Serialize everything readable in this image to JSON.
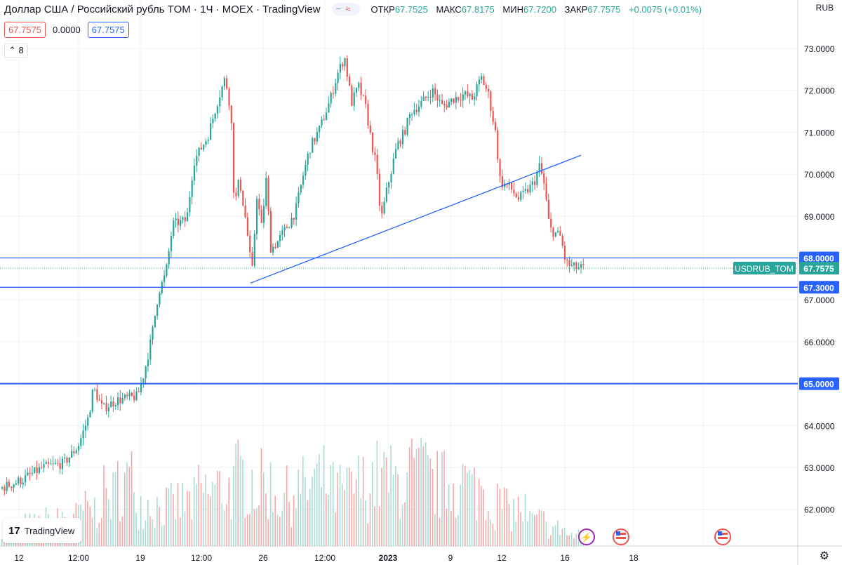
{
  "header": {
    "symbol": "Доллар США / Российский рубль TOM · 1Ч · MOEX · TradingView",
    "open_label": "ОТКР",
    "open": "67.7525",
    "high_label": "МАКС",
    "high": "67.8175",
    "low_label": "МИН",
    "low": "67.7200",
    "close_label": "ЗАКР",
    "close": "67.7575",
    "change": "+0.0075 (+0.01%)",
    "sell_price": "67.7575",
    "spread": "0.0000",
    "buy_price": "67.7575",
    "indicator_count": "8",
    "currency": "RUB"
  },
  "branding": {
    "logo_text": "TradingView"
  },
  "colors": {
    "up": "#26a69a",
    "down": "#ef5350",
    "line": "#2962ff",
    "grid": "#eef1f6",
    "vol_up": "#a8dcd4",
    "vol_down": "#f5a9a7"
  },
  "chart_data": {
    "type": "candlestick",
    "title": "Доллар США / Российский рубль TOM",
    "ylim": [
      61.6,
      73.0
    ],
    "y_ticks": [
      "73.0000",
      "72.0000",
      "71.0000",
      "70.0000",
      "69.0000",
      "68.0000",
      "67.0000",
      "66.0000",
      "65.0000",
      "64.0000",
      "63.0000",
      "62.0000"
    ],
    "x_ticks": [
      "12",
      "12:00",
      "19",
      "12:00",
      "26",
      "12:00",
      "2023",
      "9",
      "12",
      "16",
      "18"
    ],
    "price_path": [
      [
        0,
        62.5
      ],
      [
        30,
        62.7
      ],
      [
        60,
        63.0
      ],
      [
        90,
        63.1
      ],
      [
        110,
        63.5
      ],
      [
        125,
        64.2
      ],
      [
        132,
        64.9
      ],
      [
        145,
        64.4
      ],
      [
        165,
        64.6
      ],
      [
        195,
        64.7
      ],
      [
        205,
        65.3
      ],
      [
        215,
        66.1
      ],
      [
        225,
        67.2
      ],
      [
        235,
        67.6
      ],
      [
        245,
        68.8
      ],
      [
        265,
        68.9
      ],
      [
        275,
        70.3
      ],
      [
        295,
        70.9
      ],
      [
        310,
        71.8
      ],
      [
        320,
        72.3
      ],
      [
        328,
        71.5
      ],
      [
        333,
        69.2
      ],
      [
        340,
        69.9
      ],
      [
        350,
        68.8
      ],
      [
        358,
        67.6
      ],
      [
        365,
        69.5
      ],
      [
        372,
        68.7
      ],
      [
        378,
        69.9
      ],
      [
        385,
        68.2
      ],
      [
        395,
        68.4
      ],
      [
        410,
        68.8
      ],
      [
        420,
        69.1
      ],
      [
        430,
        69.9
      ],
      [
        440,
        70.6
      ],
      [
        455,
        71.1
      ],
      [
        470,
        71.8
      ],
      [
        480,
        72.4
      ],
      [
        490,
        72.8
      ],
      [
        500,
        71.7
      ],
      [
        510,
        72.1
      ],
      [
        520,
        71.6
      ],
      [
        528,
        70.8
      ],
      [
        535,
        70.2
      ],
      [
        542,
        68.9
      ],
      [
        550,
        69.6
      ],
      [
        558,
        70.2
      ],
      [
        565,
        70.7
      ],
      [
        575,
        71.0
      ],
      [
        585,
        71.5
      ],
      [
        600,
        71.7
      ],
      [
        615,
        72.0
      ],
      [
        630,
        71.6
      ],
      [
        645,
        71.8
      ],
      [
        660,
        71.9
      ],
      [
        672,
        71.8
      ],
      [
        685,
        72.3
      ],
      [
        695,
        71.9
      ],
      [
        705,
        71.0
      ],
      [
        712,
        69.8
      ],
      [
        725,
        69.7
      ],
      [
        738,
        69.4
      ],
      [
        750,
        69.6
      ],
      [
        760,
        69.8
      ],
      [
        768,
        70.2
      ],
      [
        775,
        69.7
      ],
      [
        782,
        68.7
      ],
      [
        790,
        68.6
      ],
      [
        798,
        68.5
      ],
      [
        805,
        67.9
      ],
      [
        812,
        67.8
      ],
      [
        820,
        67.76
      ],
      [
        830,
        67.7575
      ]
    ],
    "volume_heights": [
      0.25,
      0.3,
      0.35,
      0.4,
      0.5,
      0.7,
      0.9,
      0.6,
      0.55,
      0.6,
      0.75,
      0.8,
      0.95,
      0.85,
      0.7,
      0.8,
      0.9,
      0.75,
      0.85,
      0.95,
      0.9,
      1.0,
      0.85,
      0.9,
      0.8,
      0.6,
      0.5,
      0.35,
      0.25,
      0.15
    ],
    "horizontal_lines": [
      68.0,
      67.3,
      65.0
    ],
    "current_price": 67.7575,
    "current_label": "USDRUB_TOM",
    "labels": {
      "line_68": "68.0000",
      "line_673": "67.3000",
      "line_65": "65.0000",
      "current": "67.7575"
    },
    "trendline": {
      "from": [
        "24",
        67.4
      ],
      "to": [
        "14",
        70.45
      ]
    }
  }
}
